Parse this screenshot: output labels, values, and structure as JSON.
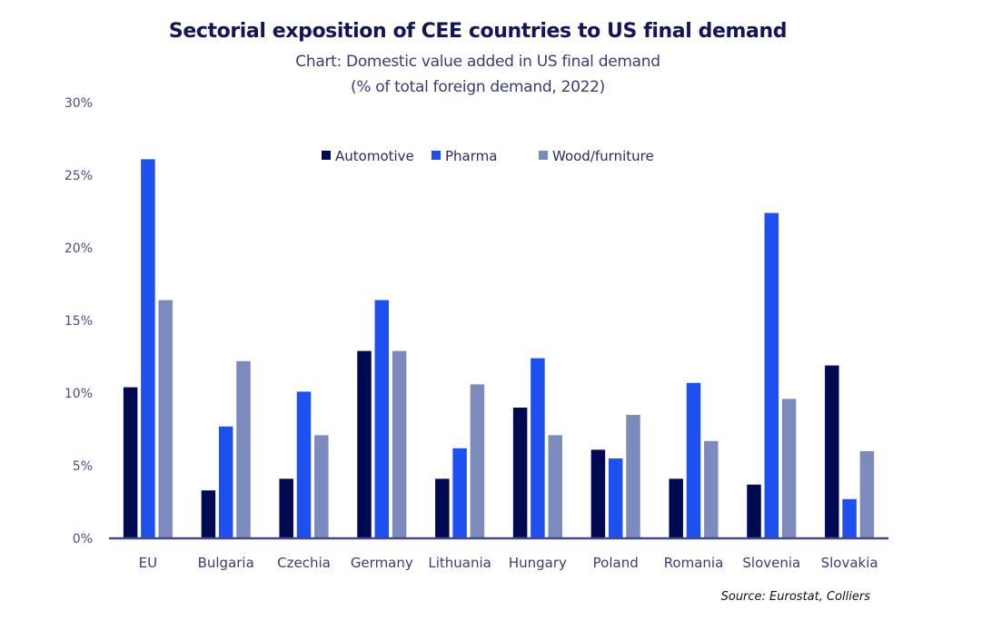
{
  "chart_data": {
    "type": "bar",
    "title": "Sectorial exposition of CEE countries to US final demand",
    "subtitle": "Chart: Domestic value added in US final demand",
    "subtitle2": "(% of total foreign demand, 2022)",
    "xlabel": "",
    "ylabel": "",
    "ylim": [
      0,
      30
    ],
    "yticks": [
      0,
      5,
      10,
      15,
      20,
      25,
      30
    ],
    "ytick_labels": [
      "0%",
      "5%",
      "10%",
      "15%",
      "20%",
      "25%",
      "30%"
    ],
    "grid": false,
    "legend_position": "top-center",
    "categories": [
      "EU",
      "Bulgaria",
      "Czechia",
      "Germany",
      "Lithuania",
      "Hungary",
      "Poland",
      "Romania",
      "Slovenia",
      "Slovakia"
    ],
    "series": [
      {
        "name": "Automotive",
        "color": "#000a52",
        "values": [
          10.4,
          3.3,
          4.1,
          12.9,
          4.1,
          9.0,
          6.1,
          4.1,
          3.7,
          11.9
        ]
      },
      {
        "name": "Pharma",
        "color": "#1e50f0",
        "values": [
          26.1,
          7.7,
          10.1,
          16.4,
          6.2,
          12.4,
          5.5,
          10.7,
          22.4,
          2.7
        ]
      },
      {
        "name": "Wood/furniture",
        "color": "#7d8abe",
        "values": [
          16.4,
          12.2,
          7.1,
          12.9,
          10.6,
          7.1,
          8.5,
          6.7,
          9.6,
          6.0
        ]
      }
    ],
    "source": "Source: Eurostat, Colliers"
  },
  "colors": {
    "title": "#14145a",
    "axis": "#4a4a86"
  }
}
